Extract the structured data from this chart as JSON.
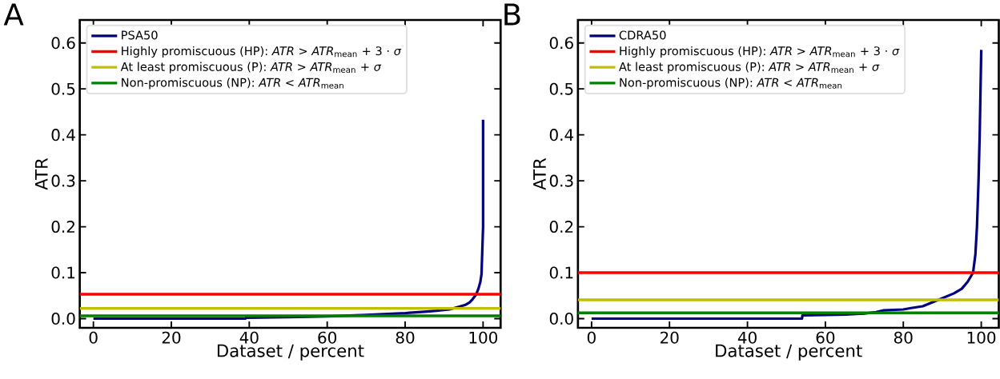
{
  "chart_data": [
    {
      "type": "line",
      "title": "A",
      "xlabel": "Dataset / percent",
      "ylabel": "ATR",
      "xlim": [
        -3.5,
        104.5
      ],
      "ylim": [
        -0.02,
        0.65
      ],
      "xticks": [
        0,
        20,
        40,
        60,
        80,
        100
      ],
      "yticks": [
        {
          "value": 0,
          "label": "0.0"
        },
        {
          "value": 0.1,
          "label": "0.1"
        },
        {
          "value": 0.2,
          "label": "0.2"
        },
        {
          "value": 0.3,
          "label": "0.3"
        },
        {
          "value": 0.4,
          "label": "0.4"
        },
        {
          "value": 0.5,
          "label": "0.5"
        },
        {
          "value": 0.6,
          "label": "0.6"
        }
      ],
      "series": [
        {
          "name": "PSA50",
          "color": "#000080",
          "x": [
            0,
            39,
            39.2,
            50,
            60,
            70,
            80,
            85,
            88,
            91.4,
            93,
            95.5,
            96.5,
            97.3,
            98.2,
            98.8,
            99.3,
            99.6,
            100,
            100
          ],
          "values": [
            0,
            0,
            0.002,
            0.003,
            0.005,
            0.008,
            0.012,
            0.015,
            0.017,
            0.02,
            0.024,
            0.03,
            0.035,
            0.042,
            0.052,
            0.065,
            0.08,
            0.097,
            0.2,
            0.433
          ]
        }
      ],
      "ref_lines": [
        {
          "axis": "y",
          "value": 0.053,
          "label": "Highly promiscuous (HP): *ATR* > *ATR*$_{mean}$ + 3 · *σ*",
          "color": "#ff0000"
        },
        {
          "axis": "y",
          "value": 0.022,
          "label": "At least promiscuous (P): *ATR* > *ATR*$_{mean}$ + *σ*",
          "color": "#bfbf00"
        },
        {
          "axis": "y",
          "value": 0.006,
          "label": "Non-promiscuous (NP): *ATR* < *ATR*$_{mean}$",
          "color": "#008000"
        }
      ],
      "legend": "top left",
      "grid": false,
      "line_style": "solid"
    },
    {
      "type": "line",
      "title": "B",
      "xlabel": "Dataset / percent",
      "ylabel": "ATR",
      "xlim": [
        -3.5,
        104.5
      ],
      "ylim": [
        -0.02,
        0.65
      ],
      "xticks": [
        0,
        20,
        40,
        60,
        80,
        100
      ],
      "yticks": [
        {
          "value": 0,
          "label": "0.0"
        },
        {
          "value": 0.1,
          "label": "0.1"
        },
        {
          "value": 0.2,
          "label": "0.2"
        },
        {
          "value": 0.3,
          "label": "0.3"
        },
        {
          "value": 0.4,
          "label": "0.4"
        },
        {
          "value": 0.5,
          "label": "0.5"
        },
        {
          "value": 0.6,
          "label": "0.6"
        }
      ],
      "series": [
        {
          "name": "CDRA50",
          "color": "#000080",
          "x": [
            0,
            54,
            54.1,
            60,
            65,
            70,
            73,
            75,
            80,
            82,
            85,
            89,
            93,
            95,
            96.5,
            97.9,
            98.5,
            98.9,
            99.3,
            99.6,
            100
          ],
          "values": [
            0,
            0,
            0.007,
            0.008,
            0.009,
            0.011,
            0.014,
            0.018,
            0.02,
            0.023,
            0.027,
            0.041,
            0.055,
            0.065,
            0.08,
            0.1,
            0.14,
            0.2,
            0.3,
            0.4,
            0.585
          ]
        }
      ],
      "ref_lines": [
        {
          "axis": "y",
          "value": 0.1,
          "label": "Highly promiscuous (HP): *ATR* > *ATR*$_{mean}$ + 3 · *σ*",
          "color": "#ff0000"
        },
        {
          "axis": "y",
          "value": 0.041,
          "label": "At least promiscuous (P): *ATR* > *ATR*$_{mean}$ + *σ*",
          "color": "#bfbf00"
        },
        {
          "axis": "y",
          "value": 0.0125,
          "label": "Non-promiscuous (NP): *ATR* < *ATR*$_{mean}$",
          "color": "#008000"
        }
      ],
      "legend": "top left",
      "grid": false,
      "line_style": "solid"
    }
  ]
}
